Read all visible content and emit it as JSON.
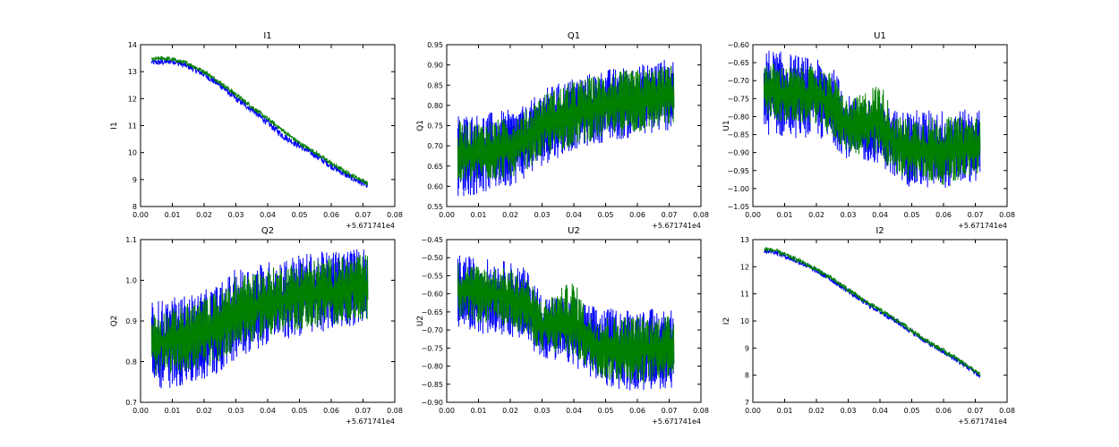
{
  "chart_data": [
    {
      "type": "line",
      "title": "I1",
      "ylabel": "I1",
      "xlabel": "",
      "x_offset_text": "+5.671741e4",
      "xlim": [
        0.0,
        0.08
      ],
      "ylim": [
        8,
        14
      ],
      "xticks": [
        "0.00",
        "0.01",
        "0.02",
        "0.03",
        "0.04",
        "0.05",
        "0.06",
        "0.07",
        "0.08"
      ],
      "yticks": [
        "8",
        "9",
        "10",
        "11",
        "12",
        "13",
        "14"
      ],
      "grid": false,
      "series": [
        {
          "color": "#0000ff",
          "x": [
            0.0035,
            0.007,
            0.01,
            0.015,
            0.02,
            0.025,
            0.03,
            0.035,
            0.04,
            0.045,
            0.05,
            0.055,
            0.06,
            0.065,
            0.07,
            0.0715
          ],
          "y": [
            13.35,
            13.35,
            13.4,
            13.2,
            12.9,
            12.5,
            12.0,
            11.6,
            11.1,
            10.6,
            10.25,
            9.9,
            9.5,
            9.15,
            8.85,
            8.8
          ],
          "jitter": 0.12,
          "npoints": 600
        },
        {
          "color": "#007f00",
          "x": [
            0.0035,
            0.007,
            0.01,
            0.015,
            0.02,
            0.025,
            0.03,
            0.035,
            0.04,
            0.045,
            0.05,
            0.055,
            0.06,
            0.065,
            0.07,
            0.0715
          ],
          "y": [
            13.45,
            13.5,
            13.45,
            13.3,
            13.0,
            12.6,
            12.15,
            11.7,
            11.25,
            10.8,
            10.35,
            10.0,
            9.6,
            9.25,
            8.95,
            8.85
          ],
          "jitter": 0.08,
          "npoints": 600
        }
      ]
    },
    {
      "type": "line",
      "title": "Q1",
      "ylabel": "Q1",
      "xlabel": "",
      "x_offset_text": "+5.671741e4",
      "xlim": [
        0.0,
        0.08
      ],
      "ylim": [
        0.55,
        0.95
      ],
      "xticks": [
        "0.00",
        "0.01",
        "0.02",
        "0.03",
        "0.04",
        "0.05",
        "0.06",
        "0.07",
        "0.08"
      ],
      "yticks": [
        "0.55",
        "0.60",
        "0.65",
        "0.70",
        "0.75",
        "0.80",
        "0.85",
        "0.90",
        "0.95"
      ],
      "grid": false,
      "series": [
        {
          "color": "#0000ff",
          "x": [
            0.0035,
            0.01,
            0.02,
            0.025,
            0.03,
            0.04,
            0.05,
            0.06,
            0.0715
          ],
          "y_min": [
            0.57,
            0.58,
            0.6,
            0.62,
            0.65,
            0.69,
            0.71,
            0.72,
            0.74
          ],
          "y_max": [
            0.78,
            0.78,
            0.79,
            0.8,
            0.84,
            0.87,
            0.89,
            0.9,
            0.92
          ],
          "npoints": 700
        },
        {
          "color": "#007f00",
          "x": [
            0.0035,
            0.01,
            0.02,
            0.025,
            0.03,
            0.04,
            0.05,
            0.06,
            0.0715
          ],
          "y_min": [
            0.6,
            0.61,
            0.62,
            0.64,
            0.67,
            0.7,
            0.72,
            0.73,
            0.75
          ],
          "y_max": [
            0.76,
            0.76,
            0.77,
            0.79,
            0.83,
            0.86,
            0.88,
            0.89,
            0.9
          ],
          "npoints": 700
        }
      ]
    },
    {
      "type": "line",
      "title": "U1",
      "ylabel": "U1",
      "xlabel": "",
      "x_offset_text": "+5.671741e4",
      "xlim": [
        0.0,
        0.08
      ],
      "ylim": [
        -1.05,
        -0.6
      ],
      "xticks": [
        "0.00",
        "0.01",
        "0.02",
        "0.03",
        "0.04",
        "0.05",
        "0.06",
        "0.07",
        "0.08"
      ],
      "yticks": [
        "−1.05",
        "−1.00",
        "−0.95",
        "−0.90",
        "−0.85",
        "−0.80",
        "−0.75",
        "−0.70",
        "−0.65",
        "−0.60"
      ],
      "grid": false,
      "series": [
        {
          "color": "#0000ff",
          "x": [
            0.0035,
            0.01,
            0.02,
            0.025,
            0.03,
            0.04,
            0.045,
            0.05,
            0.06,
            0.0715
          ],
          "y_min": [
            -0.85,
            -0.86,
            -0.86,
            -0.88,
            -0.92,
            -0.93,
            -0.98,
            -1.0,
            -1.0,
            -0.98
          ],
          "y_max": [
            -0.61,
            -0.62,
            -0.64,
            -0.66,
            -0.74,
            -0.76,
            -0.78,
            -0.78,
            -0.78,
            -0.78
          ],
          "npoints": 700
        },
        {
          "color": "#007f00",
          "x": [
            0.0035,
            0.01,
            0.02,
            0.025,
            0.03,
            0.04,
            0.045,
            0.05,
            0.06,
            0.0715
          ],
          "y_min": [
            -0.8,
            -0.82,
            -0.82,
            -0.86,
            -0.9,
            -0.92,
            -0.96,
            -0.98,
            -0.99,
            -0.96
          ],
          "y_max": [
            -0.64,
            -0.66,
            -0.66,
            -0.68,
            -0.76,
            -0.7,
            -0.8,
            -0.8,
            -0.8,
            -0.8
          ],
          "npoints": 700
        }
      ]
    },
    {
      "type": "line",
      "title": "Q2",
      "ylabel": "Q2",
      "xlabel": "",
      "x_offset_text": "+5.671741e4",
      "xlim": [
        0.0,
        0.08
      ],
      "ylim": [
        0.65,
        1.1
      ],
      "xticks": [
        "0.00",
        "0.01",
        "0.02",
        "0.03",
        "0.04",
        "0.05",
        "0.06",
        "0.07",
        "0.08"
      ],
      "yticks": [
        "0.7",
        "0.8",
        "0.9",
        "1.0",
        "1.1"
      ],
      "grid": false,
      "series": [
        {
          "color": "#0000ff",
          "x": [
            0.0035,
            0.01,
            0.02,
            0.025,
            0.03,
            0.04,
            0.05,
            0.06,
            0.0715
          ],
          "y_min": [
            0.68,
            0.69,
            0.7,
            0.73,
            0.77,
            0.81,
            0.83,
            0.85,
            0.87
          ],
          "y_max": [
            0.93,
            0.94,
            0.96,
            0.98,
            1.02,
            1.04,
            1.06,
            1.07,
            1.08
          ],
          "npoints": 700
        },
        {
          "color": "#007f00",
          "x": [
            0.0035,
            0.01,
            0.02,
            0.025,
            0.03,
            0.04,
            0.05,
            0.06,
            0.0715
          ],
          "y_min": [
            0.72,
            0.73,
            0.74,
            0.76,
            0.8,
            0.83,
            0.85,
            0.86,
            0.88
          ],
          "y_max": [
            0.9,
            0.91,
            0.94,
            0.96,
            1.0,
            1.02,
            1.04,
            1.05,
            1.06
          ],
          "npoints": 700
        }
      ]
    },
    {
      "type": "line",
      "title": "U2",
      "ylabel": "U2",
      "xlabel": "",
      "x_offset_text": "+5.671741e4",
      "xlim": [
        0.0,
        0.08
      ],
      "ylim": [
        -0.9,
        -0.45
      ],
      "xticks": [
        "0.00",
        "0.01",
        "0.02",
        "0.03",
        "0.04",
        "0.05",
        "0.06",
        "0.07",
        "0.08"
      ],
      "yticks": [
        "−0.90",
        "−0.85",
        "−0.80",
        "−0.75",
        "−0.70",
        "−0.65",
        "−0.60",
        "−0.55",
        "−0.50",
        "−0.45"
      ],
      "grid": false,
      "series": [
        {
          "color": "#0000ff",
          "x": [
            0.0035,
            0.01,
            0.02,
            0.025,
            0.03,
            0.04,
            0.045,
            0.05,
            0.06,
            0.0715
          ],
          "y_min": [
            -0.7,
            -0.71,
            -0.72,
            -0.74,
            -0.78,
            -0.8,
            -0.83,
            -0.86,
            -0.87,
            -0.86
          ],
          "y_max": [
            -0.49,
            -0.5,
            -0.51,
            -0.53,
            -0.6,
            -0.61,
            -0.63,
            -0.64,
            -0.64,
            -0.64
          ],
          "npoints": 700
        },
        {
          "color": "#007f00",
          "x": [
            0.0035,
            0.01,
            0.02,
            0.025,
            0.03,
            0.04,
            0.045,
            0.05,
            0.06,
            0.0715
          ],
          "y_min": [
            -0.67,
            -0.68,
            -0.69,
            -0.72,
            -0.76,
            -0.78,
            -0.81,
            -0.84,
            -0.85,
            -0.83
          ],
          "y_max": [
            -0.51,
            -0.52,
            -0.53,
            -0.55,
            -0.62,
            -0.56,
            -0.66,
            -0.66,
            -0.66,
            -0.66
          ],
          "npoints": 700
        }
      ]
    },
    {
      "type": "line",
      "title": "I2",
      "ylabel": "I2",
      "xlabel": "",
      "x_offset_text": "+5.671741e4",
      "xlim": [
        0.0,
        0.08
      ],
      "ylim": [
        7,
        13
      ],
      "xticks": [
        "0.00",
        "0.01",
        "0.02",
        "0.03",
        "0.04",
        "0.05",
        "0.06",
        "0.07",
        "0.08"
      ],
      "yticks": [
        "7",
        "8",
        "9",
        "10",
        "11",
        "12",
        "13"
      ],
      "grid": false,
      "series": [
        {
          "color": "#0000ff",
          "x": [
            0.0035,
            0.007,
            0.01,
            0.015,
            0.02,
            0.025,
            0.03,
            0.035,
            0.04,
            0.045,
            0.05,
            0.055,
            0.06,
            0.065,
            0.07,
            0.0715
          ],
          "y": [
            12.6,
            12.55,
            12.4,
            12.15,
            11.85,
            11.5,
            11.1,
            10.7,
            10.35,
            10.0,
            9.6,
            9.2,
            8.85,
            8.5,
            8.1,
            7.95
          ],
          "jitter": 0.1,
          "npoints": 600
        },
        {
          "color": "#007f00",
          "x": [
            0.0035,
            0.007,
            0.01,
            0.015,
            0.02,
            0.025,
            0.03,
            0.035,
            0.04,
            0.045,
            0.05,
            0.055,
            0.06,
            0.065,
            0.07,
            0.0715
          ],
          "y": [
            12.65,
            12.6,
            12.45,
            12.2,
            11.9,
            11.55,
            11.15,
            10.75,
            10.4,
            10.05,
            9.65,
            9.25,
            8.9,
            8.55,
            8.15,
            8.0
          ],
          "jitter": 0.08,
          "npoints": 600
        }
      ]
    }
  ]
}
